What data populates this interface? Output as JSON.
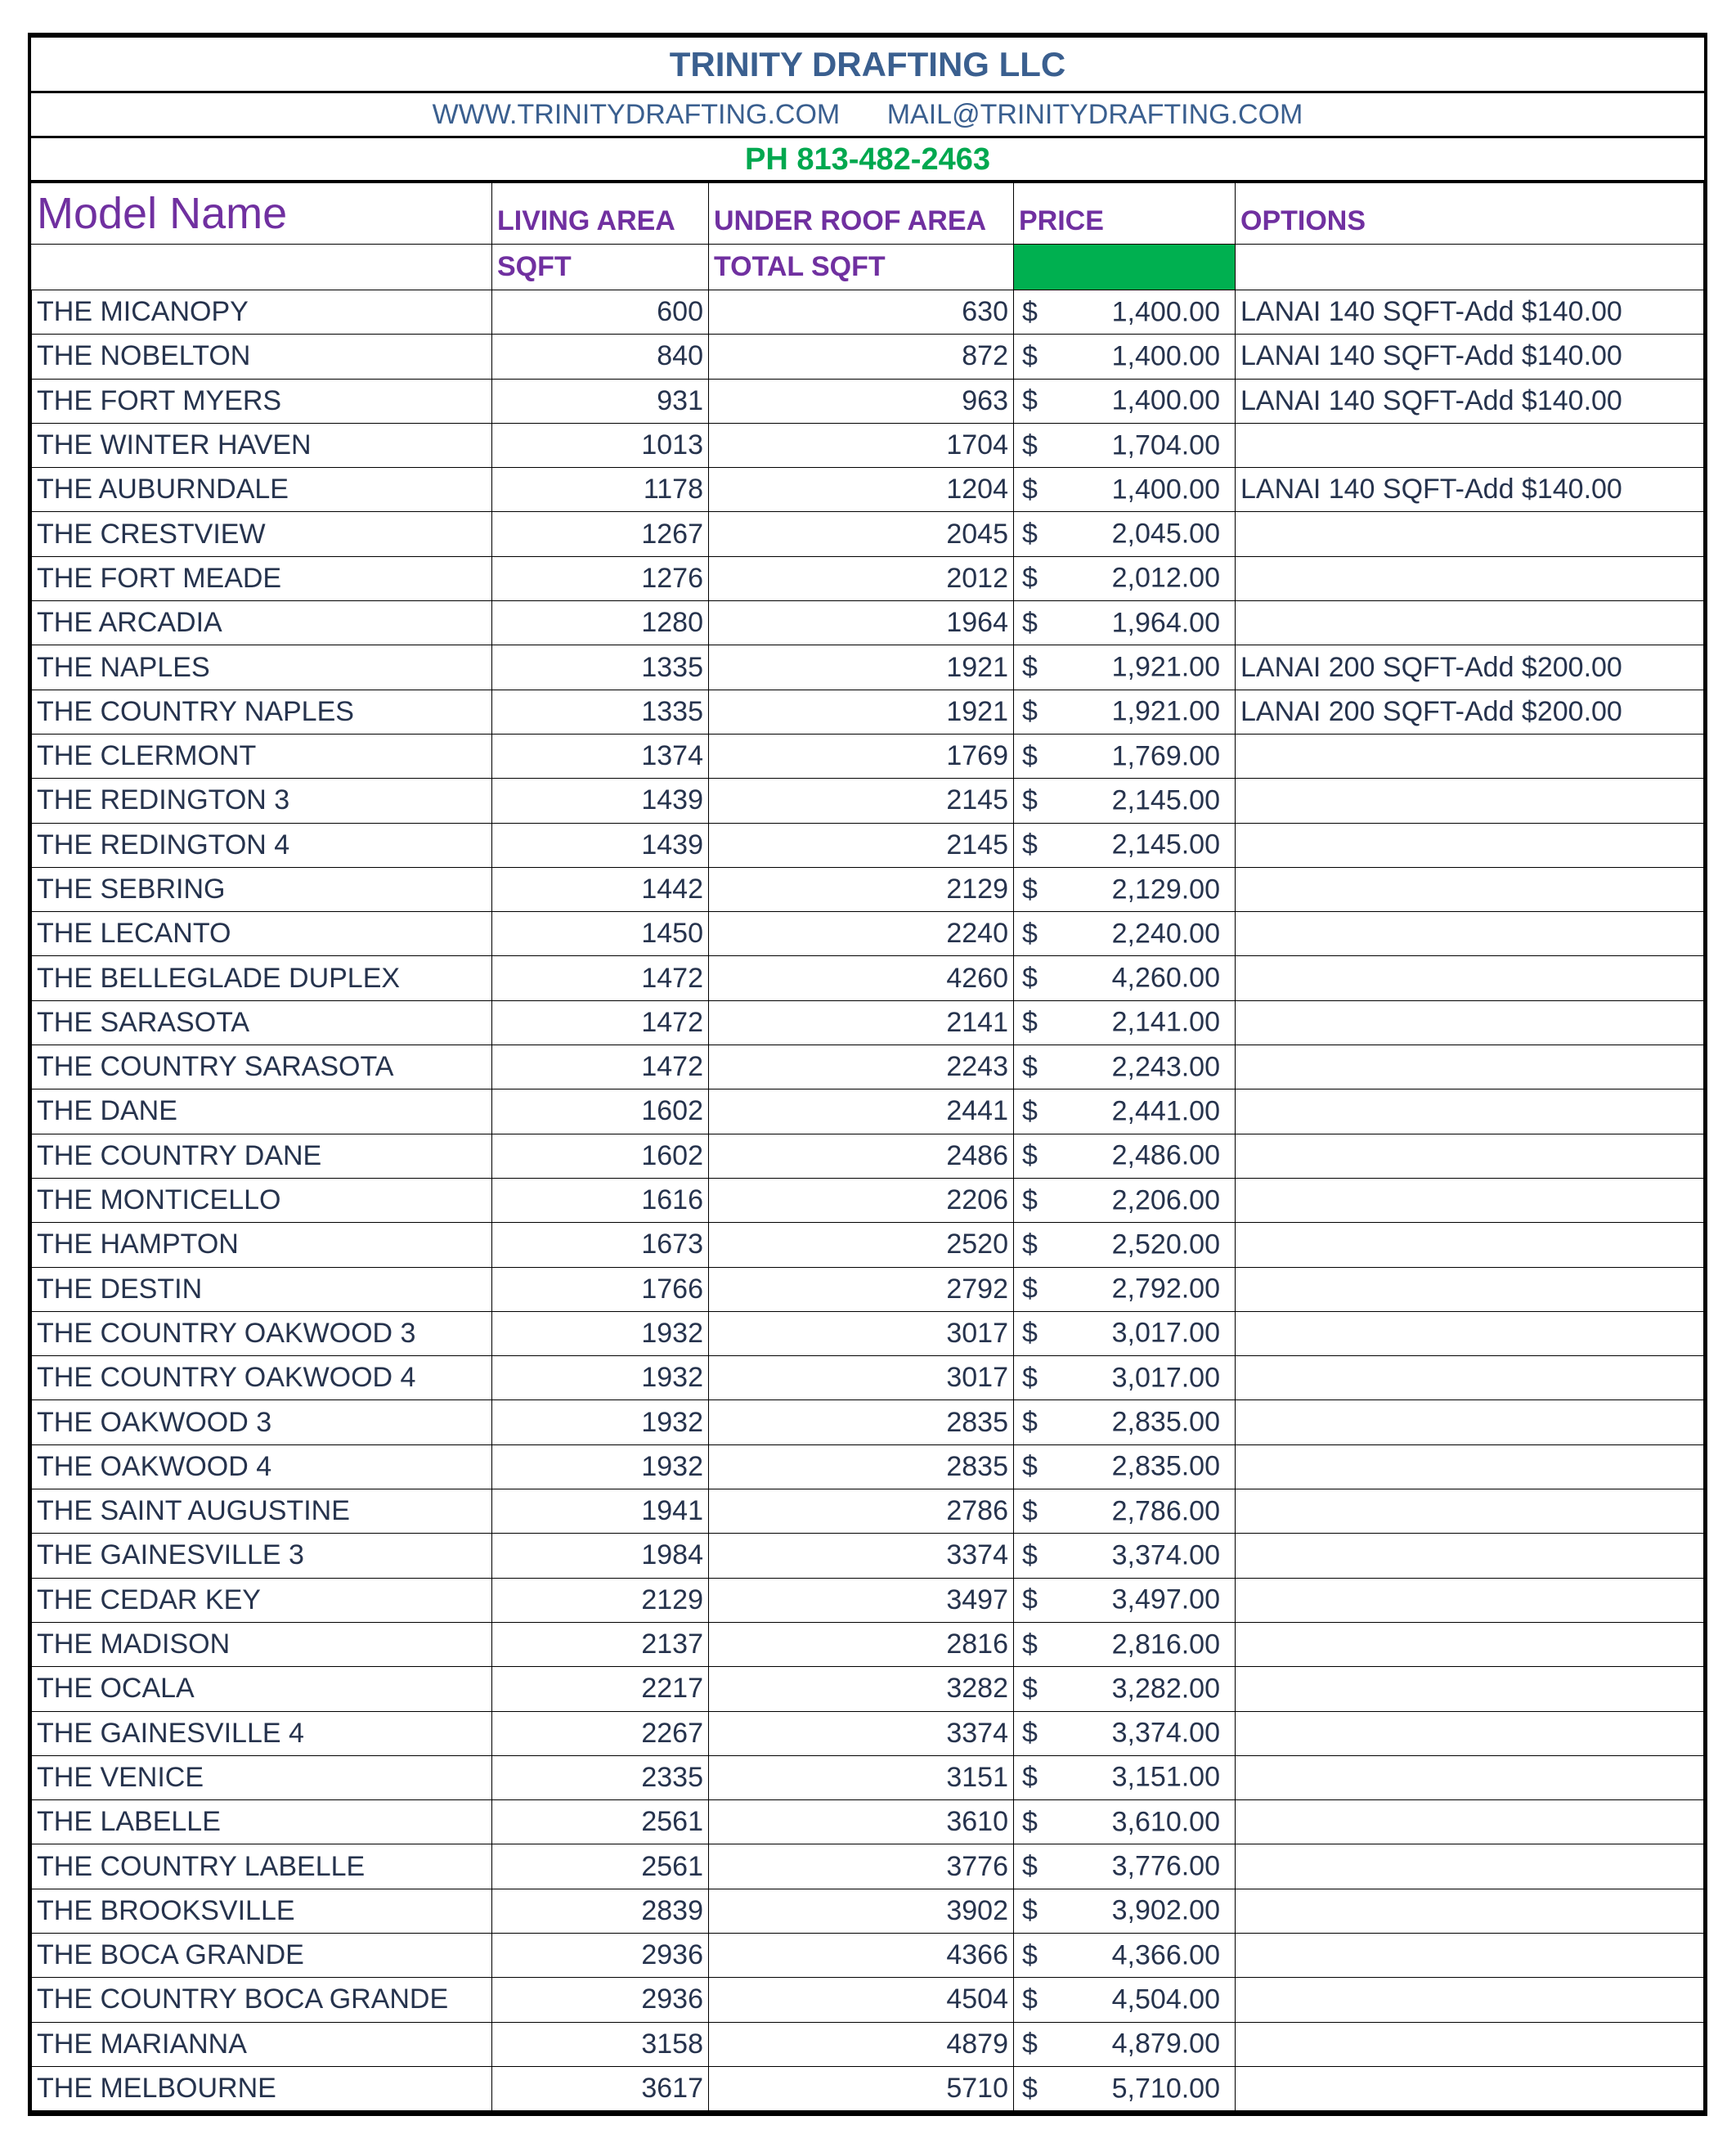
{
  "header": {
    "company": "TRINITY DRAFTING LLC",
    "website": "WWW.TRINITYDRAFTING.COM",
    "email": "MAIL@TRINITYDRAFTING.COM",
    "phone": "PH 813-482-2463"
  },
  "columns": {
    "model": "Model Name",
    "living": "LIVING AREA",
    "living_sub": "SQFT",
    "roof": "UNDER ROOF AREA",
    "roof_sub": "TOTAL SQFT",
    "price": "PRICE",
    "options": "OPTIONS"
  },
  "colors": {
    "title": "#3a5f8f",
    "header": "#7030a0",
    "phone": "#00a84f",
    "price_highlight": "#00b050"
  },
  "currency": "$",
  "rows": [
    {
      "model": "THE MICANOPY",
      "living": "600",
      "roof": "630",
      "price": "1,400.00",
      "options": "LANAI 140 SQFT-Add $140.00"
    },
    {
      "model": "THE NOBELTON",
      "living": "840",
      "roof": "872",
      "price": "1,400.00",
      "options": "LANAI 140 SQFT-Add $140.00"
    },
    {
      "model": "THE FORT MYERS",
      "living": "931",
      "roof": "963",
      "price": "1,400.00",
      "options": "LANAI 140 SQFT-Add $140.00"
    },
    {
      "model": "THE WINTER HAVEN",
      "living": "1013",
      "roof": "1704",
      "price": "1,704.00",
      "options": ""
    },
    {
      "model": "THE AUBURNDALE",
      "living": "1178",
      "roof": "1204",
      "price": "1,400.00",
      "options": "LANAI 140 SQFT-Add $140.00"
    },
    {
      "model": "THE CRESTVIEW",
      "living": "1267",
      "roof": "2045",
      "price": "2,045.00",
      "options": ""
    },
    {
      "model": "THE FORT MEADE",
      "living": "1276",
      "roof": "2012",
      "price": "2,012.00",
      "options": ""
    },
    {
      "model": "THE ARCADIA",
      "living": "1280",
      "roof": "1964",
      "price": "1,964.00",
      "options": ""
    },
    {
      "model": "THE NAPLES",
      "living": "1335",
      "roof": "1921",
      "price": "1,921.00",
      "options": "LANAI 200 SQFT-Add $200.00"
    },
    {
      "model": "THE COUNTRY NAPLES",
      "living": "1335",
      "roof": "1921",
      "price": "1,921.00",
      "options": "LANAI 200 SQFT-Add $200.00"
    },
    {
      "model": "THE CLERMONT",
      "living": "1374",
      "roof": "1769",
      "price": "1,769.00",
      "options": ""
    },
    {
      "model": "THE REDINGTON 3",
      "living": "1439",
      "roof": "2145",
      "price": "2,145.00",
      "options": ""
    },
    {
      "model": "THE REDINGTON 4",
      "living": "1439",
      "roof": "2145",
      "price": "2,145.00",
      "options": ""
    },
    {
      "model": "THE SEBRING",
      "living": "1442",
      "roof": "2129",
      "price": "2,129.00",
      "options": ""
    },
    {
      "model": "THE LECANTO",
      "living": "1450",
      "roof": "2240",
      "price": "2,240.00",
      "options": ""
    },
    {
      "model": "THE BELLEGLADE DUPLEX",
      "living": "1472",
      "roof": "4260",
      "price": "4,260.00",
      "options": ""
    },
    {
      "model": "THE SARASOTA",
      "living": "1472",
      "roof": "2141",
      "price": "2,141.00",
      "options": ""
    },
    {
      "model": "THE COUNTRY SARASOTA",
      "living": "1472",
      "roof": "2243",
      "price": "2,243.00",
      "options": ""
    },
    {
      "model": "THE DANE",
      "living": "1602",
      "roof": "2441",
      "price": "2,441.00",
      "options": ""
    },
    {
      "model": "THE COUNTRY DANE",
      "living": "1602",
      "roof": "2486",
      "price": "2,486.00",
      "options": ""
    },
    {
      "model": "THE MONTICELLO",
      "living": "1616",
      "roof": "2206",
      "price": "2,206.00",
      "options": ""
    },
    {
      "model": "THE HAMPTON",
      "living": "1673",
      "roof": "2520",
      "price": "2,520.00",
      "options": ""
    },
    {
      "model": "THE DESTIN",
      "living": "1766",
      "roof": "2792",
      "price": "2,792.00",
      "options": ""
    },
    {
      "model": "THE COUNTRY OAKWOOD 3",
      "living": "1932",
      "roof": "3017",
      "price": "3,017.00",
      "options": ""
    },
    {
      "model": "THE COUNTRY OAKWOOD 4",
      "living": "1932",
      "roof": "3017",
      "price": "3,017.00",
      "options": ""
    },
    {
      "model": "THE OAKWOOD 3",
      "living": "1932",
      "roof": "2835",
      "price": "2,835.00",
      "options": ""
    },
    {
      "model": "THE OAKWOOD 4",
      "living": "1932",
      "roof": "2835",
      "price": "2,835.00",
      "options": ""
    },
    {
      "model": "THE SAINT AUGUSTINE",
      "living": "1941",
      "roof": "2786",
      "price": "2,786.00",
      "options": ""
    },
    {
      "model": "THE GAINESVILLE 3",
      "living": "1984",
      "roof": "3374",
      "price": "3,374.00",
      "options": ""
    },
    {
      "model": "THE CEDAR KEY",
      "living": "2129",
      "roof": "3497",
      "price": "3,497.00",
      "options": ""
    },
    {
      "model": "THE MADISON",
      "living": "2137",
      "roof": "2816",
      "price": "2,816.00",
      "options": ""
    },
    {
      "model": "THE OCALA",
      "living": "2217",
      "roof": "3282",
      "price": "3,282.00",
      "options": ""
    },
    {
      "model": "THE GAINESVILLE 4",
      "living": "2267",
      "roof": "3374",
      "price": "3,374.00",
      "options": ""
    },
    {
      "model": "THE VENICE",
      "living": "2335",
      "roof": "3151",
      "price": "3,151.00",
      "options": ""
    },
    {
      "model": "THE LABELLE",
      "living": "2561",
      "roof": "3610",
      "price": "3,610.00",
      "options": ""
    },
    {
      "model": "THE COUNTRY LABELLE",
      "living": "2561",
      "roof": "3776",
      "price": "3,776.00",
      "options": ""
    },
    {
      "model": "THE BROOKSVILLE",
      "living": "2839",
      "roof": "3902",
      "price": "3,902.00",
      "options": ""
    },
    {
      "model": "THE BOCA GRANDE",
      "living": "2936",
      "roof": "4366",
      "price": "4,366.00",
      "options": ""
    },
    {
      "model": "THE COUNTRY BOCA GRANDE",
      "living": "2936",
      "roof": "4504",
      "price": "4,504.00",
      "options": ""
    },
    {
      "model": "THE MARIANNA",
      "living": "3158",
      "roof": "4879",
      "price": "4,879.00",
      "options": ""
    },
    {
      "model": "THE MELBOURNE",
      "living": "3617",
      "roof": "5710",
      "price": "5,710.00",
      "options": ""
    }
  ]
}
